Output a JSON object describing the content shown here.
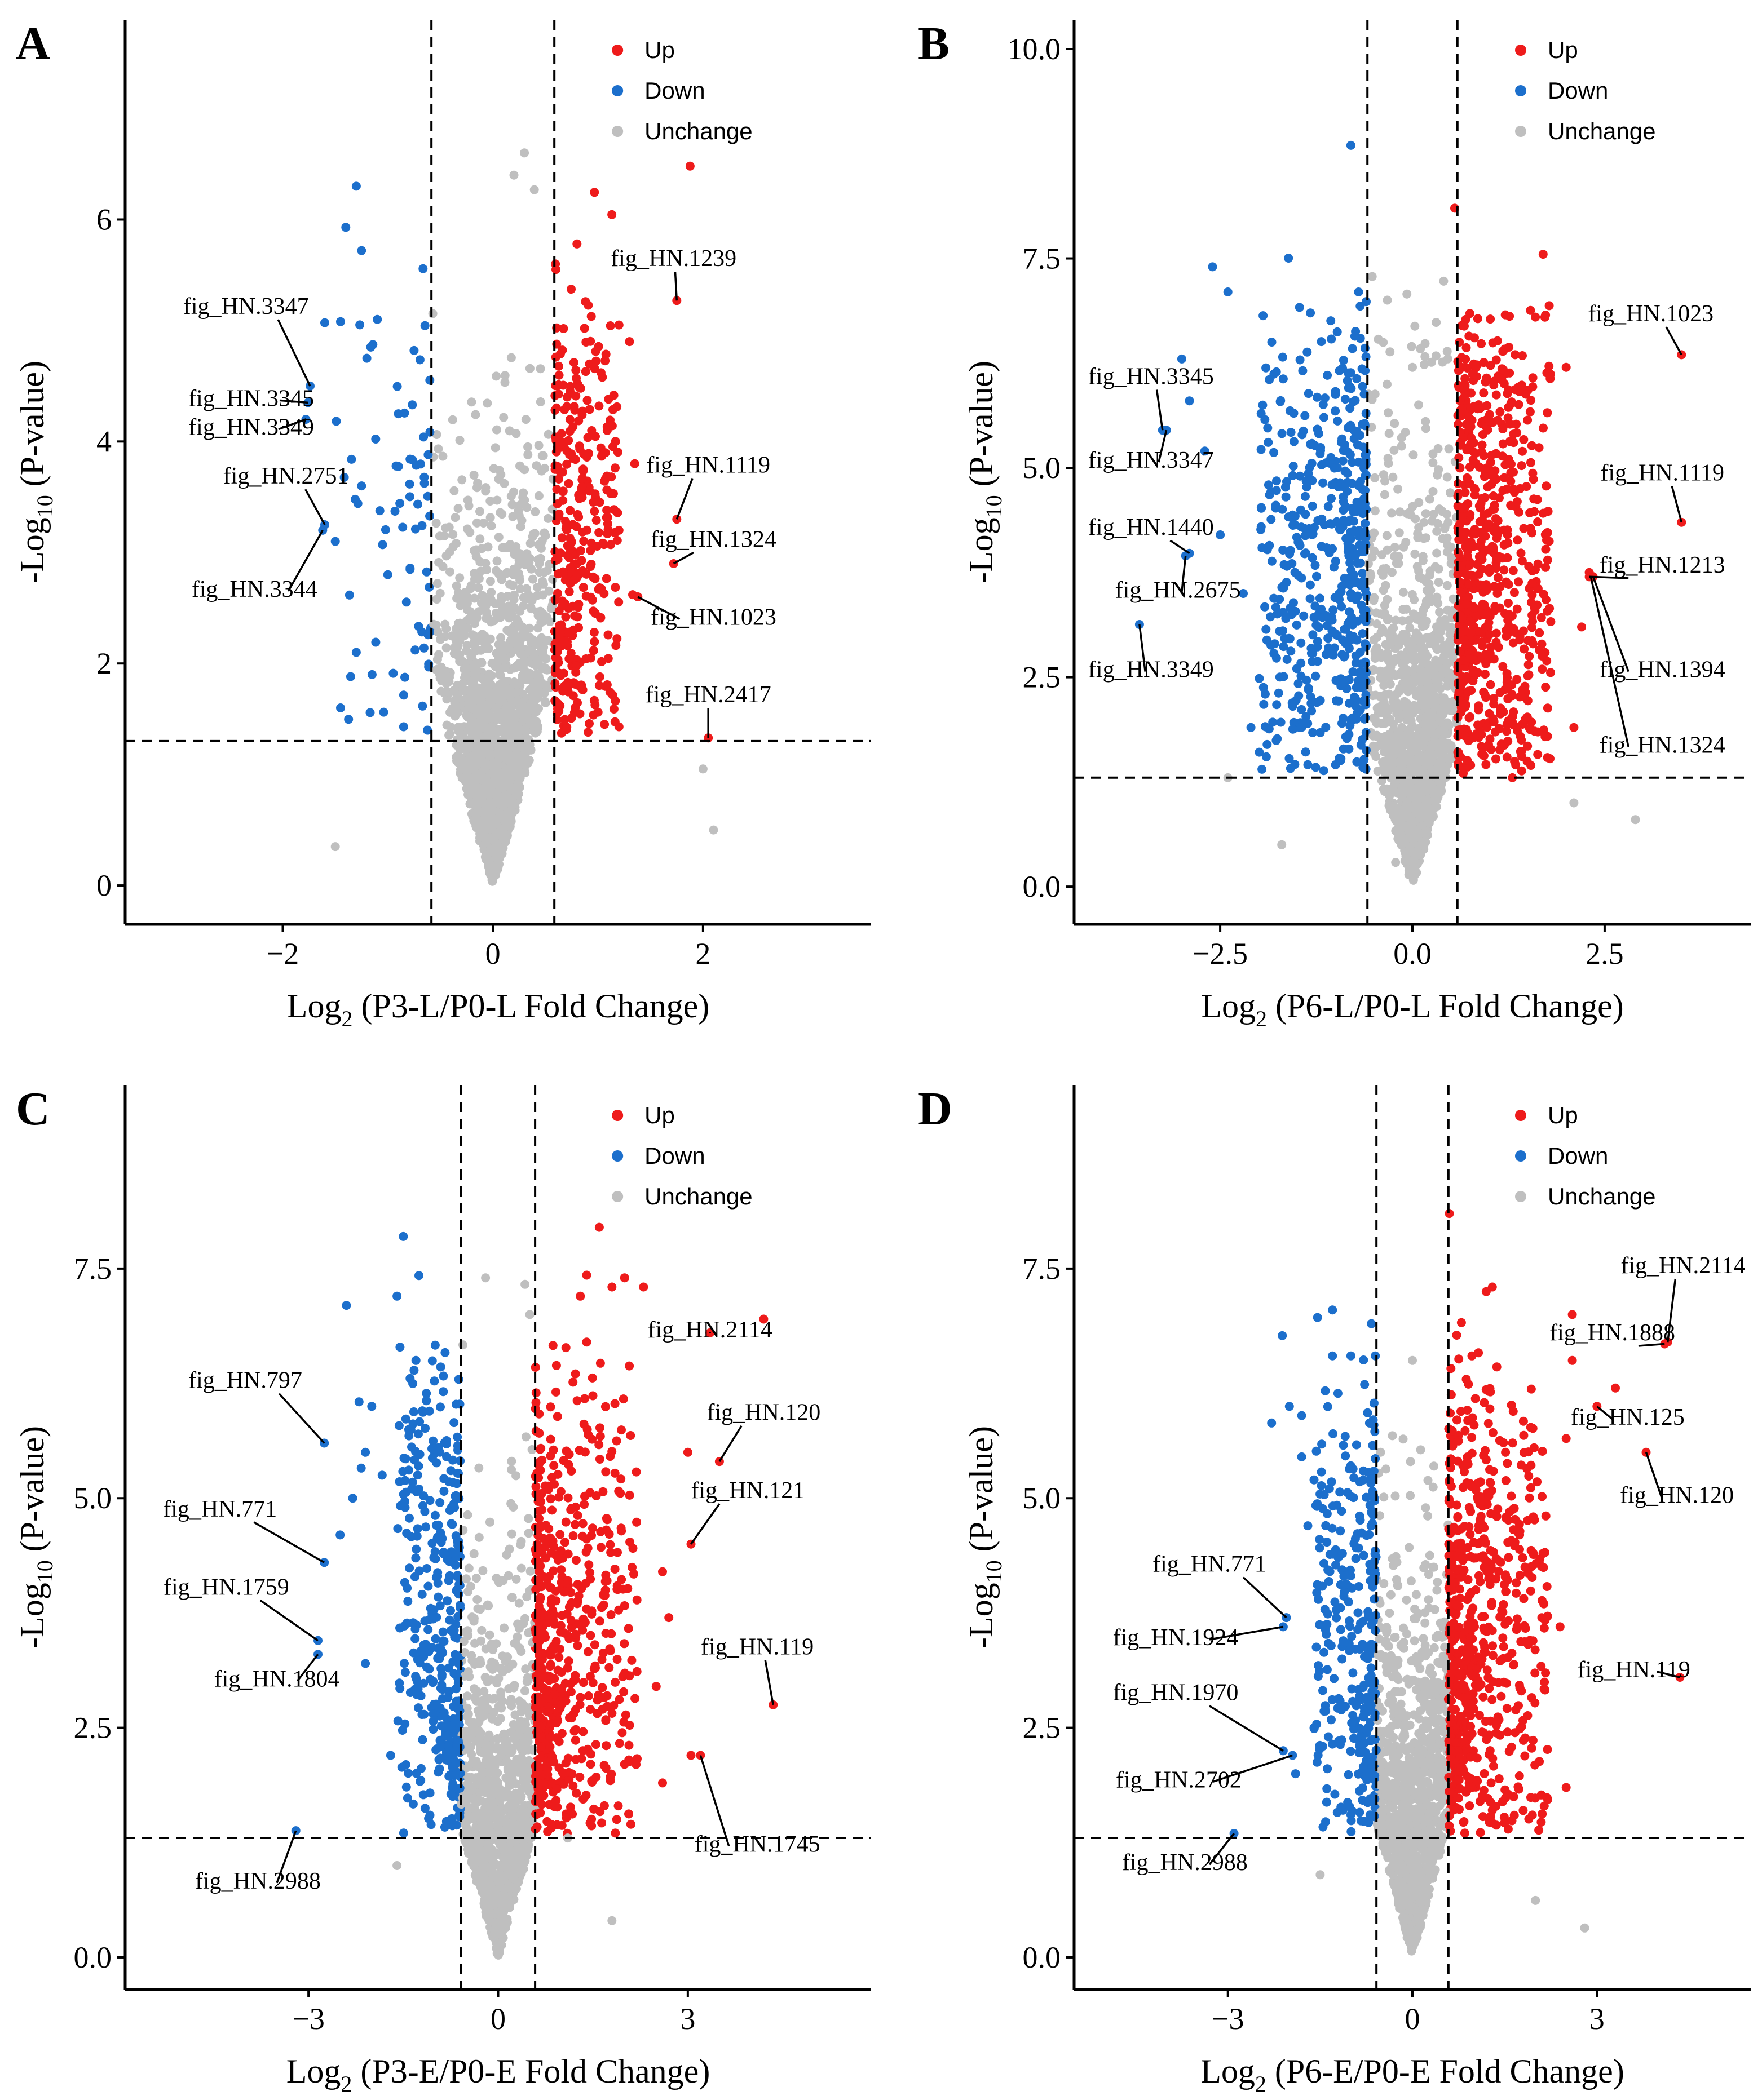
{
  "colors": {
    "up": "#EE1B1B",
    "down": "#1C6FCC",
    "unchange": "#BFBFBF"
  },
  "legend": {
    "up": "Up",
    "down": "Down",
    "unchange": "Unchange"
  },
  "chart_data": [
    {
      "panel": "A",
      "type": "scatter",
      "xlabel_pre": "Log",
      "xlabel_sub": "2",
      "xlabel_post": " (P3-L/P0-L Fold Change)",
      "ylabel_pre": "-Log",
      "ylabel_sub": "10",
      "ylabel_post": " (P-value)",
      "xlim": [
        -3.5,
        3.6
      ],
      "ylim": [
        -0.35,
        7.8
      ],
      "xticks": [
        -2,
        0,
        2
      ],
      "xtick_labels": [
        "−2",
        "0",
        "2"
      ],
      "yticks": [
        0,
        2,
        4,
        6
      ],
      "ytick_labels": [
        "0",
        "2",
        "4",
        "6"
      ],
      "fc_threshold": 0.585,
      "p_threshold": 1.301,
      "background": {
        "seed": 11,
        "n": 1700,
        "xsd": 0.22,
        "slope": 3.2,
        "amp": 1.25,
        "ymax": 6.6,
        "nup": 300,
        "ndown": 50,
        "upx": [
          0.59,
          1.2
        ],
        "downx": [
          -1.5,
          -0.6
        ],
        "updownymax": 5.7
      },
      "points": {
        "up": [
          [
            0.8,
            5.78
          ],
          [
            0.6,
            5.55
          ],
          [
            1.2,
            5.05
          ],
          [
            1.3,
            4.9
          ],
          [
            1.35,
            3.8
          ],
          [
            1.2,
            3.2
          ],
          [
            1.33,
            2.62
          ],
          [
            1.2,
            1.43
          ]
        ],
        "down": [
          [
            -1.3,
            6.3
          ],
          [
            -1.4,
            5.93
          ],
          [
            -1.6,
            5.07
          ],
          [
            -1.45,
            5.08
          ],
          [
            -1.25,
            5.72
          ],
          [
            -1.1,
            5.1
          ],
          [
            -1.2,
            4.75
          ],
          [
            -0.75,
            4.82
          ],
          [
            -0.9,
            4.25
          ],
          [
            -1.25,
            3.6
          ],
          [
            -1.5,
            3.1
          ],
          [
            -1.0,
            2.8
          ],
          [
            -1.3,
            2.1
          ],
          [
            -1.15,
            1.9
          ],
          [
            -1.45,
            1.6
          ],
          [
            -0.85,
            1.43
          ]
        ],
        "unchange": [
          [
            2.0,
            1.05
          ],
          [
            2.1,
            0.5
          ],
          [
            -1.5,
            0.35
          ],
          [
            0.3,
            6.6
          ],
          [
            0.2,
            6.4
          ]
        ]
      },
      "annotations": [
        {
          "label": "fig_HN.1239",
          "x": 1.75,
          "y": 5.27,
          "tx": 1.72,
          "ty": 5.58,
          "anchor": "middle"
        },
        {
          "label": "fig_HN.3347",
          "x": -1.74,
          "y": 4.5,
          "tx": -2.35,
          "ty": 5.15,
          "anchor": "middle"
        },
        {
          "label": "fig_HN.3345",
          "x": -1.76,
          "y": 4.35,
          "tx": -2.3,
          "ty": 4.32,
          "anchor": "middle"
        },
        {
          "label": "fig_HN.3349",
          "x": -1.78,
          "y": 4.2,
          "tx": -2.3,
          "ty": 4.06,
          "anchor": "middle"
        },
        {
          "label": "fig_HN.2751",
          "x": -1.6,
          "y": 3.25,
          "tx": -1.97,
          "ty": 3.62,
          "anchor": "middle"
        },
        {
          "label": "fig_HN.3344",
          "x": -1.62,
          "y": 3.2,
          "tx": -2.27,
          "ty": 2.6,
          "anchor": "middle"
        },
        {
          "label": "fig_HN.1119",
          "x": 1.75,
          "y": 3.3,
          "tx": 2.05,
          "ty": 3.72,
          "anchor": "middle"
        },
        {
          "label": "fig_HN.1324",
          "x": 1.72,
          "y": 2.9,
          "tx": 2.1,
          "ty": 3.05,
          "anchor": "middle"
        },
        {
          "label": "fig_HN.1023",
          "x": 1.38,
          "y": 2.6,
          "tx": 2.1,
          "ty": 2.35,
          "anchor": "middle"
        },
        {
          "label": "fig_HN.2417",
          "x": 2.05,
          "y": 1.33,
          "tx": 2.05,
          "ty": 1.65,
          "anchor": "middle"
        }
      ]
    },
    {
      "panel": "B",
      "type": "scatter",
      "xlabel_pre": "Log",
      "xlabel_sub": "2",
      "xlabel_post": " (P6-L/P0-L Fold Change)",
      "ylabel_pre": "-Log",
      "ylabel_sub": "10",
      "ylabel_post": " (P-value)",
      "xlim": [
        -4.4,
        4.4
      ],
      "ylim": [
        -0.45,
        10.35
      ],
      "xticks": [
        -2.5,
        0,
        2.5
      ],
      "xtick_labels": [
        "−2.5",
        "0.0",
        "2.5"
      ],
      "yticks": [
        0,
        2.5,
        5,
        7.5,
        10
      ],
      "ytick_labels": [
        "0.0",
        "2.5",
        "5.0",
        "7.5",
        "10.0"
      ],
      "fc_threshold": 0.585,
      "p_threshold": 1.301,
      "background": {
        "seed": 23,
        "n": 1300,
        "xsd": 0.3,
        "slope": 3.0,
        "amp": 1.9,
        "ymax": 8.0,
        "nup": 620,
        "ndown": 460,
        "upx": [
          0.59,
          1.8
        ],
        "downx": [
          -2.0,
          -0.6
        ],
        "updownymax": 7.2
      },
      "points": {
        "up": [
          [
            1.7,
            7.55
          ],
          [
            1.6,
            6.8
          ],
          [
            2.0,
            6.2
          ],
          [
            2.3,
            3.75
          ],
          [
            2.2,
            3.1
          ],
          [
            2.1,
            1.9
          ],
          [
            1.3,
            1.3
          ],
          [
            0.55,
            8.1
          ]
        ],
        "down": [
          [
            -2.6,
            7.4
          ],
          [
            -2.4,
            7.1
          ],
          [
            -0.7,
            7.1
          ],
          [
            -0.8,
            8.85
          ],
          [
            -3.0,
            6.3
          ],
          [
            -2.9,
            5.8
          ],
          [
            -2.7,
            5.2
          ],
          [
            -2.5,
            4.2
          ],
          [
            -2.2,
            3.5
          ],
          [
            -2.1,
            1.9
          ],
          [
            -1.9,
            1.55
          ]
        ],
        "unchange": [
          [
            2.9,
            0.8
          ],
          [
            2.1,
            1.0
          ],
          [
            -1.7,
            0.5
          ],
          [
            -2.4,
            1.3
          ],
          [
            0.0,
            6.2
          ]
        ]
      },
      "annotations": [
        {
          "label": "fig_HN.1023",
          "x": 3.5,
          "y": 6.35,
          "tx": 3.1,
          "ty": 6.75,
          "anchor": "middle"
        },
        {
          "label": "fig_HN.3345",
          "x": -3.25,
          "y": 5.45,
          "tx": -3.4,
          "ty": 6.0,
          "anchor": "middle"
        },
        {
          "label": "fig_HN.3347",
          "x": -3.2,
          "y": 5.45,
          "tx": -3.4,
          "ty": 5.0,
          "anchor": "middle"
        },
        {
          "label": "fig_HN.1440",
          "x": -2.9,
          "y": 3.98,
          "tx": -3.4,
          "ty": 4.2,
          "anchor": "middle"
        },
        {
          "label": "fig_HN.2675",
          "x": -2.95,
          "y": 3.95,
          "tx": -3.05,
          "ty": 3.45,
          "anchor": "middle"
        },
        {
          "label": "fig_HN.3349",
          "x": -3.55,
          "y": 3.13,
          "tx": -3.4,
          "ty": 2.5,
          "anchor": "middle"
        },
        {
          "label": "fig_HN.1119",
          "x": 3.5,
          "y": 4.35,
          "tx": 3.25,
          "ty": 4.85,
          "anchor": "middle"
        },
        {
          "label": "fig_HN.1213",
          "x": 2.3,
          "y": 3.7,
          "tx": 3.25,
          "ty": 3.75,
          "anchor": "middle"
        },
        {
          "label": "fig_HN.1394",
          "x": 2.35,
          "y": 3.7,
          "tx": 3.25,
          "ty": 2.5,
          "anchor": "middle"
        },
        {
          "label": "fig_HN.1324",
          "x": 2.32,
          "y": 3.7,
          "tx": 3.25,
          "ty": 1.6,
          "anchor": "middle"
        }
      ]
    },
    {
      "panel": "C",
      "type": "scatter",
      "xlabel_pre": "Log",
      "xlabel_sub": "2",
      "xlabel_post": " (P3-E/P0-E Fold Change)",
      "ylabel_pre": "-Log",
      "ylabel_sub": "10",
      "ylabel_post": " (P-value)",
      "xlim": [
        -5.9,
        5.9
      ],
      "ylim": [
        -0.35,
        9.5
      ],
      "xticks": [
        -3,
        0,
        3
      ],
      "xtick_labels": [
        "−3",
        "0",
        "3"
      ],
      "yticks": [
        0,
        2.5,
        5,
        7.5
      ],
      "ytick_labels": [
        "0.0",
        "2.5",
        "5.0",
        "7.5"
      ],
      "fc_threshold": 0.585,
      "p_threshold": 1.301,
      "background": {
        "seed": 37,
        "n": 1250,
        "xsd": 0.42,
        "slope": 2.4,
        "amp": 1.6,
        "ymax": 7.5,
        "nup": 420,
        "ndown": 260,
        "upx": [
          0.59,
          2.2
        ],
        "downx": [
          -1.6,
          -0.6
        ],
        "updownymax": 6.8
      },
      "points": {
        "up": [
          [
            1.6,
            7.95
          ],
          [
            1.3,
            7.2
          ],
          [
            1.8,
            7.3
          ],
          [
            2.0,
            7.4
          ],
          [
            2.3,
            7.3
          ],
          [
            4.2,
            6.95
          ],
          [
            1.4,
            6.7
          ],
          [
            3.0,
            5.5
          ],
          [
            2.6,
            4.2
          ],
          [
            2.7,
            3.7
          ],
          [
            2.5,
            2.95
          ],
          [
            2.6,
            1.9
          ],
          [
            1.9,
            1.65
          ],
          [
            2.1,
            1.45
          ],
          [
            3.05,
            2.2
          ]
        ],
        "down": [
          [
            -1.5,
            7.85
          ],
          [
            -2.4,
            7.1
          ],
          [
            -1.6,
            7.2
          ],
          [
            -1.3,
            6.5
          ],
          [
            -2.2,
            6.05
          ],
          [
            -2.0,
            6.0
          ],
          [
            -2.1,
            5.5
          ],
          [
            -2.3,
            5.0
          ],
          [
            -2.5,
            4.6
          ],
          [
            -2.1,
            3.2
          ],
          [
            -1.7,
            2.2
          ]
        ],
        "unchange": [
          [
            1.8,
            0.4
          ],
          [
            1.1,
            1.3
          ],
          [
            -1.6,
            1.0
          ],
          [
            -0.2,
            7.4
          ],
          [
            0.5,
            7.0
          ]
        ]
      },
      "annotations": [
        {
          "label": "fig_HN.2114",
          "x": 3.35,
          "y": 6.8,
          "tx": 3.35,
          "ty": 6.75,
          "anchor": "middle"
        },
        {
          "label": "fig_HN.797",
          "x": -2.75,
          "y": 5.6,
          "tx": -4.0,
          "ty": 6.2,
          "anchor": "middle"
        },
        {
          "label": "fig_HN.120",
          "x": 3.5,
          "y": 5.4,
          "tx": 4.2,
          "ty": 5.85,
          "anchor": "middle"
        },
        {
          "label": "fig_HN.121",
          "x": 3.05,
          "y": 4.5,
          "tx": 3.95,
          "ty": 5.0,
          "anchor": "middle"
        },
        {
          "label": "fig_HN.771",
          "x": -2.75,
          "y": 4.3,
          "tx": -4.4,
          "ty": 4.8,
          "anchor": "middle"
        },
        {
          "label": "fig_HN.1759",
          "x": -2.85,
          "y": 3.45,
          "tx": -4.3,
          "ty": 3.95,
          "anchor": "middle"
        },
        {
          "label": "fig_HN.1804",
          "x": -2.85,
          "y": 3.3,
          "tx": -3.5,
          "ty": 2.95,
          "anchor": "middle"
        },
        {
          "label": "fig_HN.119",
          "x": 4.35,
          "y": 2.75,
          "tx": 4.1,
          "ty": 3.3,
          "anchor": "middle"
        },
        {
          "label": "fig_HN.1745",
          "x": 3.2,
          "y": 2.2,
          "tx": 4.1,
          "ty": 1.15,
          "anchor": "middle"
        },
        {
          "label": "fig_HN.2988",
          "x": -3.2,
          "y": 1.38,
          "tx": -3.8,
          "ty": 0.75,
          "anchor": "middle"
        }
      ]
    },
    {
      "panel": "D",
      "type": "scatter",
      "xlabel_pre": "Log",
      "xlabel_sub": "2",
      "xlabel_post": " (P6-E/P0-E Fold Change)",
      "ylabel_pre": "-Log",
      "ylabel_sub": "10",
      "ylabel_post": " (P-value)",
      "xlim": [
        -5.5,
        5.5
      ],
      "ylim": [
        -0.35,
        9.5
      ],
      "xticks": [
        -3,
        0,
        3
      ],
      "xtick_labels": [
        "−3",
        "0",
        "3"
      ],
      "yticks": [
        0,
        2.5,
        5,
        7.5
      ],
      "ytick_labels": [
        "0.0",
        "2.5",
        "5.0",
        "7.5"
      ],
      "fc_threshold": 0.585,
      "p_threshold": 1.301,
      "background": {
        "seed": 53,
        "n": 1300,
        "xsd": 0.4,
        "slope": 2.5,
        "amp": 1.6,
        "ymax": 7.6,
        "nup": 480,
        "ndown": 230,
        "upx": [
          0.59,
          2.2
        ],
        "downx": [
          -1.6,
          -0.6
        ],
        "updownymax": 6.6
      },
      "points": {
        "up": [
          [
            1.3,
            7.3
          ],
          [
            1.2,
            7.25
          ],
          [
            2.6,
            7.0
          ],
          [
            2.6,
            6.5
          ],
          [
            3.3,
            6.2
          ],
          [
            2.5,
            5.65
          ],
          [
            2.4,
            3.6
          ],
          [
            2.5,
            1.85
          ],
          [
            1.8,
            1.6
          ],
          [
            2.2,
            1.72
          ],
          [
            0.6,
            8.1
          ]
        ],
        "down": [
          [
            -1.3,
            7.05
          ],
          [
            -1.3,
            6.55
          ],
          [
            -1.0,
            6.55
          ],
          [
            -2.0,
            6.0
          ],
          [
            -1.8,
            5.9
          ],
          [
            -1.8,
            5.45
          ],
          [
            -1.6,
            5.2
          ],
          [
            -1.7,
            4.7
          ],
          [
            -1.6,
            2.5
          ],
          [
            -1.9,
            2.0
          ]
        ],
        "unchange": [
          [
            2.8,
            0.32
          ],
          [
            2.0,
            0.62
          ],
          [
            -1.5,
            0.9
          ],
          [
            0.0,
            6.5
          ]
        ]
      },
      "annotations": [
        {
          "label": "fig_HN.2114",
          "x": 4.15,
          "y": 6.7,
          "tx": 4.4,
          "ty": 7.45,
          "anchor": "middle"
        },
        {
          "label": "fig_HN.1888",
          "x": 4.1,
          "y": 6.68,
          "tx": 3.25,
          "ty": 6.72,
          "anchor": "middle"
        },
        {
          "label": "fig_HN.125",
          "x": 3.0,
          "y": 6.0,
          "tx": 3.5,
          "ty": 5.8,
          "anchor": "middle"
        },
        {
          "label": "fig_HN.120",
          "x": 3.8,
          "y": 5.5,
          "tx": 4.3,
          "ty": 4.95,
          "anchor": "middle"
        },
        {
          "label": "fig_HN.771",
          "x": -2.05,
          "y": 3.7,
          "tx": -3.3,
          "ty": 4.2,
          "anchor": "middle"
        },
        {
          "label": "fig_HN.1924",
          "x": -2.1,
          "y": 3.6,
          "tx": -3.85,
          "ty": 3.4,
          "anchor": "middle"
        },
        {
          "label": "fig_HN.1970",
          "x": -2.1,
          "y": 2.25,
          "tx": -3.85,
          "ty": 2.8,
          "anchor": "middle"
        },
        {
          "label": "fig_HN.2702",
          "x": -1.95,
          "y": 2.2,
          "tx": -3.8,
          "ty": 1.85,
          "anchor": "middle"
        },
        {
          "label": "fig_HN.2988",
          "x": -2.9,
          "y": 1.35,
          "tx": -3.7,
          "ty": 0.95,
          "anchor": "middle"
        },
        {
          "label": "fig_HN.119",
          "x": 4.35,
          "y": 3.05,
          "tx": 3.6,
          "ty": 3.05,
          "anchor": "middle"
        }
      ]
    }
  ]
}
